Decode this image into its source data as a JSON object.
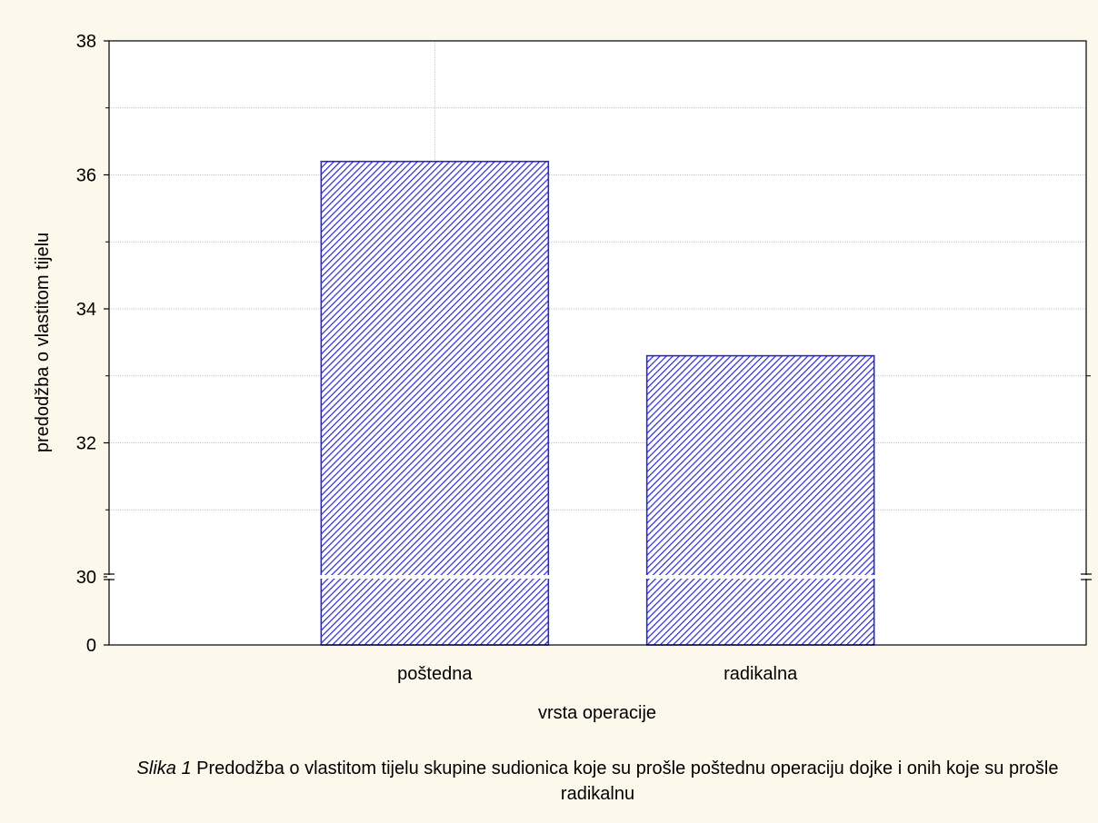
{
  "chart_data": {
    "type": "bar",
    "categories": [
      "poštedna",
      "radikalna"
    ],
    "values": [
      36.2,
      33.3
    ],
    "xlabel": "vrsta operacije",
    "ylabel": "predodžba o vlastitom tijelu",
    "yticks": [
      "38",
      "36",
      "34",
      "32",
      "30",
      "0"
    ],
    "ylim": [
      30,
      38
    ],
    "axis_break": true,
    "grid": true,
    "bar_fill": "hatched",
    "bar_color": "#2a2acc"
  },
  "caption": {
    "label": "Slika 1",
    "text": " Predodžba o vlastitom tijelu skupine sudionica koje su prošle poštednu operaciju dojke i onih koje su prošle radikalnu"
  }
}
